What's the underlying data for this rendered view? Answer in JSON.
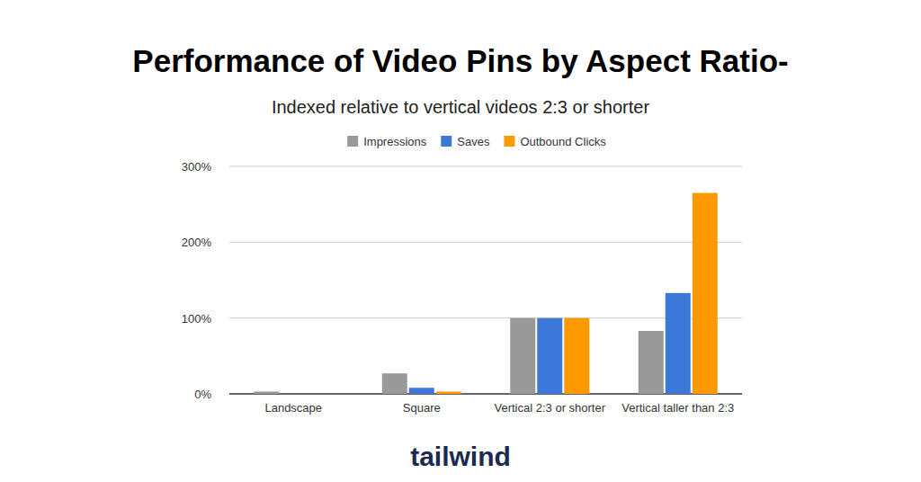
{
  "chart_data": {
    "type": "bar",
    "title": "Performance of Video Pins by Aspect Ratio-",
    "subtitle": "Indexed relative to vertical videos 2:3 or shorter",
    "footer": "tailwind",
    "categories": [
      "Landscape",
      "Square",
      "Vertical 2:3 or shorter",
      "Vertical taller than 2:3"
    ],
    "series": [
      {
        "name": "Impressions",
        "color": "#999999",
        "values": [
          3,
          27,
          100,
          83
        ]
      },
      {
        "name": "Saves",
        "color": "#3c78d8",
        "values": [
          0,
          8,
          100,
          133
        ]
      },
      {
        "name": "Outbound Clicks",
        "color": "#ff9900",
        "values": [
          0,
          3,
          100,
          265
        ]
      }
    ],
    "ylim": [
      0,
      300
    ],
    "yticks": [
      {
        "value": 0,
        "label": "0%"
      },
      {
        "value": 100,
        "label": "100%"
      },
      {
        "value": 200,
        "label": "200%"
      },
      {
        "value": 300,
        "label": "300%"
      }
    ],
    "grid": true,
    "legend": "top"
  }
}
